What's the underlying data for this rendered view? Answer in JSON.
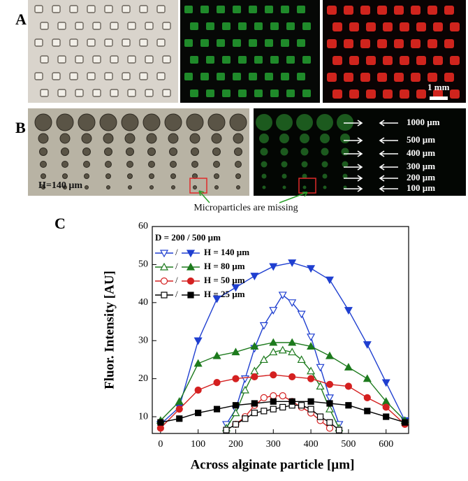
{
  "panels": {
    "a_label": "A",
    "b_label": "B",
    "c_label": "C",
    "scale_bar": "1 mm",
    "b_height_label": "H=140 µm",
    "b_diameters": [
      "1000 µm",
      "500 µm",
      "400 µm",
      "300 µm",
      "200 µm",
      "100 µm"
    ],
    "b_note": "Microparticles are missing"
  },
  "chart_data": {
    "type": "line",
    "x_label": "Across alginate particle [µm]",
    "y_label": "Fluor. Intensity  [AU]",
    "legend_title": "D = 200 / 500 µm",
    "legend_separator": "/",
    "legend_position": "upper left",
    "xlim": [
      -22,
      660
    ],
    "ylim": [
      5.6,
      60
    ],
    "xticks": [
      0,
      100,
      200,
      300,
      400,
      500,
      600
    ],
    "yticks": [
      10,
      20,
      30,
      40,
      50,
      60
    ],
    "series": [
      {
        "marker": "triangle-down",
        "filled": false,
        "color": "#1f3fd0",
        "x": [
          175,
          200,
          225,
          250,
          275,
          300,
          325,
          350,
          375,
          400,
          425,
          450,
          475
        ],
        "values": [
          8,
          12,
          20,
          28,
          34,
          38,
          42,
          40,
          37,
          31,
          23,
          15,
          8
        ]
      },
      {
        "name": "H = 140 µm",
        "marker": "triangle-down",
        "filled": true,
        "color": "#1f3fd0",
        "x": [
          0,
          50,
          100,
          150,
          200,
          250,
          300,
          350,
          400,
          450,
          500,
          550,
          600,
          650
        ],
        "values": [
          8,
          12.5,
          30,
          41,
          44,
          47,
          49.5,
          50.5,
          49,
          46,
          38,
          29,
          19,
          9
        ]
      },
      {
        "marker": "triangle-up",
        "filled": false,
        "color": "#1d7a1d",
        "x": [
          175,
          200,
          225,
          250,
          275,
          300,
          325,
          350,
          375,
          400,
          425,
          450,
          475
        ],
        "values": [
          7,
          11,
          17,
          22,
          25,
          27,
          27.5,
          27,
          25,
          22,
          18,
          12,
          7
        ]
      },
      {
        "name": "H = 80 µm",
        "marker": "triangle-up",
        "filled": true,
        "color": "#1d7a1d",
        "x": [
          0,
          50,
          100,
          150,
          200,
          250,
          300,
          350,
          400,
          450,
          500,
          550,
          600,
          650
        ],
        "values": [
          9,
          14,
          24,
          26,
          27,
          28.5,
          29.5,
          29.5,
          28.5,
          26,
          23,
          20,
          14,
          9
        ]
      },
      {
        "marker": "circle",
        "filled": false,
        "color": "#d42020",
        "x": [
          200,
          225,
          250,
          275,
          300,
          325,
          350,
          375,
          400,
          425,
          450
        ],
        "values": [
          8,
          10,
          13,
          15,
          15.5,
          15.5,
          14,
          12.5,
          11,
          9,
          7
        ]
      },
      {
        "name": "H = 50 µm",
        "marker": "circle",
        "filled": true,
        "color": "#d42020",
        "x": [
          0,
          50,
          100,
          150,
          200,
          250,
          300,
          350,
          400,
          450,
          500,
          550,
          600,
          650
        ],
        "values": [
          7,
          12,
          17,
          19,
          20,
          20.5,
          21,
          20.5,
          20,
          18.5,
          18,
          15,
          12.5,
          8
        ]
      },
      {
        "marker": "square",
        "filled": false,
        "color": "#000000",
        "x": [
          175,
          200,
          225,
          250,
          275,
          300,
          325,
          350,
          375,
          400,
          425,
          450,
          475
        ],
        "values": [
          6.5,
          8,
          9.5,
          11,
          11.5,
          12,
          12.5,
          13,
          13,
          12,
          10,
          8.5,
          6.5
        ]
      },
      {
        "name": "H = 25 µm",
        "marker": "square",
        "filled": true,
        "color": "#000000",
        "x": [
          0,
          50,
          100,
          150,
          200,
          250,
          300,
          350,
          400,
          450,
          500,
          550,
          600,
          650
        ],
        "values": [
          8.5,
          9.5,
          11,
          12,
          13,
          13.5,
          14,
          14,
          14,
          13.5,
          13,
          11.5,
          10,
          8.5
        ]
      }
    ]
  }
}
